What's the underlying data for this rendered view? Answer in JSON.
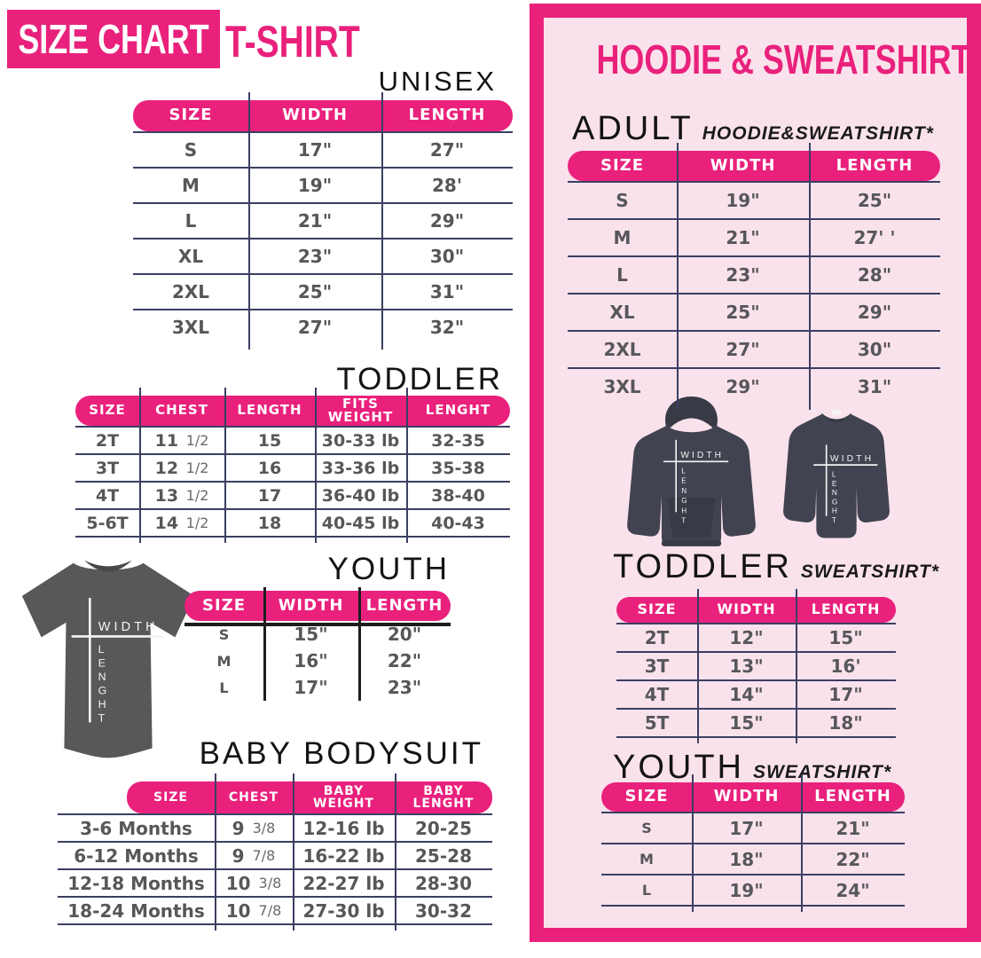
{
  "colors": {
    "accent_pink": "#e9217c",
    "panel_background": "#fae2ec",
    "grid_line": "#3b3f63",
    "table_text": "#57575a",
    "heading_text": "#141414",
    "tee_gray": "#58585a",
    "fleece_gray": "#414450"
  },
  "left": {
    "banner": {
      "title": "SIZE CHART",
      "product": "T-SHIRT"
    },
    "unisex": {
      "heading": "UNISEX",
      "columns": [
        "SIZE",
        "WIDTH",
        "LENGTH"
      ],
      "rows": [
        [
          "S",
          "17\"",
          "27\""
        ],
        [
          "M",
          "19\"",
          "28'"
        ],
        [
          "L",
          "21\"",
          "29\""
        ],
        [
          "XL",
          "23\"",
          "30\""
        ],
        [
          "2XL",
          "25\"",
          "31\""
        ],
        [
          "3XL",
          "27\"",
          "32\""
        ]
      ]
    },
    "toddler": {
      "heading": "TODDLER",
      "columns": [
        "SIZE",
        "CHEST",
        "LENGTH",
        "FITS\nWEIGHT",
        "LENGHT"
      ],
      "rows": [
        [
          "2T",
          "11 1/2",
          "15",
          "30-33 lb",
          "32-35"
        ],
        [
          "3T",
          "12 1/2",
          "16",
          "33-36 lb",
          "35-38"
        ],
        [
          "4T",
          "13 1/2",
          "17",
          "36-40 lb",
          "38-40"
        ],
        [
          "5-6T",
          "14 1/2",
          "18",
          "40-45 lb",
          "40-43"
        ]
      ]
    },
    "youth": {
      "heading": "YOUTH",
      "columns": [
        "SIZE",
        "WIDTH",
        "LENGTH"
      ],
      "rows": [
        [
          "S",
          "15\"",
          "20\""
        ],
        [
          "M",
          "16\"",
          "22\""
        ],
        [
          "L",
          "17\"",
          "23\""
        ]
      ]
    },
    "baby": {
      "heading": "BABY BODYSUIT",
      "columns": [
        "SIZE",
        "CHEST",
        "BABY\nWEIGHT",
        "BABY\nLENGHT"
      ],
      "rows": [
        [
          "3-6 Months",
          "9 3/8",
          "12-16 lb",
          "20-25"
        ],
        [
          "6-12 Months",
          "9 7/8",
          "16-22 lb",
          "25-28"
        ],
        [
          "12-18 Months",
          "10 3/8",
          "22-27 lb",
          "28-30"
        ],
        [
          "18-24 Months",
          "10 7/8",
          "27-30 lb",
          "30-32"
        ]
      ]
    }
  },
  "right": {
    "title": "HOODIE & SWEATSHIRT",
    "adult": {
      "heading": "ADULT",
      "subheading": "HOODIE&SWEATSHIRT*",
      "columns": [
        "SIZE",
        "WIDTH",
        "LENGTH"
      ],
      "rows": [
        [
          "S",
          "19\"",
          "25\""
        ],
        [
          "M",
          "21\"",
          "27' '"
        ],
        [
          "L",
          "23\"",
          "28\""
        ],
        [
          "XL",
          "25\"",
          "29\""
        ],
        [
          "2XL",
          "27\"",
          "30\""
        ],
        [
          "3XL",
          "29\"",
          "31\""
        ]
      ]
    },
    "toddler": {
      "heading": "TODDLER",
      "subheading": "SWEATSHIRT*",
      "columns": [
        "SIZE",
        "WIDTH",
        "LENGTH"
      ],
      "rows": [
        [
          "2T",
          "12\"",
          "15\""
        ],
        [
          "3T",
          "13\"",
          "16'"
        ],
        [
          "4T",
          "14\"",
          "17\""
        ],
        [
          "5T",
          "15\"",
          "18\""
        ]
      ]
    },
    "youth": {
      "heading": "YOUTH",
      "subheading": "SWEATSHIRT*",
      "columns": [
        "SIZE",
        "WIDTH",
        "LENGTH"
      ],
      "rows": [
        [
          "S",
          "17\"",
          "21\""
        ],
        [
          "M",
          "18\"",
          "22\""
        ],
        [
          "L",
          "19\"",
          "24\""
        ]
      ]
    }
  },
  "diagram_labels": {
    "width": "WIDTH",
    "length": "LENGHT"
  }
}
